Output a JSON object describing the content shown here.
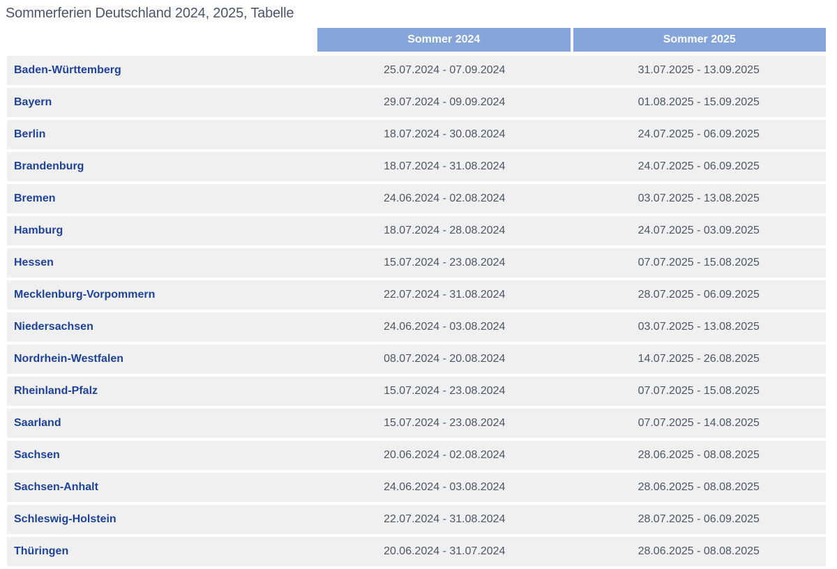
{
  "page": {
    "title": "Sommerferien Deutschland 2024, 2025, Tabelle"
  },
  "table": {
    "columns": [
      "Sommer 2024",
      "Sommer 2025"
    ],
    "rows": [
      {
        "state": "Baden-Württemberg",
        "sommer_2024": "25.07.2024 - 07.09.2024",
        "sommer_2025": "31.07.2025 - 13.09.2025"
      },
      {
        "state": "Bayern",
        "sommer_2024": "29.07.2024 - 09.09.2024",
        "sommer_2025": "01.08.2025 - 15.09.2025"
      },
      {
        "state": "Berlin",
        "sommer_2024": "18.07.2024 - 30.08.2024",
        "sommer_2025": "24.07.2025 - 06.09.2025"
      },
      {
        "state": "Brandenburg",
        "sommer_2024": "18.07.2024 - 31.08.2024",
        "sommer_2025": "24.07.2025 - 06.09.2025"
      },
      {
        "state": "Bremen",
        "sommer_2024": "24.06.2024 - 02.08.2024",
        "sommer_2025": "03.07.2025 - 13.08.2025"
      },
      {
        "state": "Hamburg",
        "sommer_2024": "18.07.2024 - 28.08.2024",
        "sommer_2025": "24.07.2025 - 03.09.2025"
      },
      {
        "state": "Hessen",
        "sommer_2024": "15.07.2024 - 23.08.2024",
        "sommer_2025": "07.07.2025 - 15.08.2025"
      },
      {
        "state": "Mecklenburg-Vorpommern",
        "sommer_2024": "22.07.2024 - 31.08.2024",
        "sommer_2025": "28.07.2025 - 06.09.2025"
      },
      {
        "state": "Niedersachsen",
        "sommer_2024": "24.06.2024 - 03.08.2024",
        "sommer_2025": "03.07.2025 - 13.08.2025"
      },
      {
        "state": "Nordrhein-Westfalen",
        "sommer_2024": "08.07.2024 - 20.08.2024",
        "sommer_2025": "14.07.2025 - 26.08.2025"
      },
      {
        "state": "Rheinland-Pfalz",
        "sommer_2024": "15.07.2024 - 23.08.2024",
        "sommer_2025": "07.07.2025 - 15.08.2025"
      },
      {
        "state": "Saarland",
        "sommer_2024": "15.07.2024 - 23.08.2024",
        "sommer_2025": "07.07.2025 - 14.08.2025"
      },
      {
        "state": "Sachsen",
        "sommer_2024": "20.06.2024 - 02.08.2024",
        "sommer_2025": "28.06.2025 - 08.08.2025"
      },
      {
        "state": "Sachsen-Anhalt",
        "sommer_2024": "24.06.2024 - 03.08.2024",
        "sommer_2025": "28.06.2025 - 08.08.2025"
      },
      {
        "state": "Schleswig-Holstein",
        "sommer_2024": "22.07.2024 - 31.08.2024",
        "sommer_2025": "28.07.2025 - 06.09.2025"
      },
      {
        "state": "Thüringen",
        "sommer_2024": "20.06.2024 - 31.07.2024",
        "sommer_2025": "28.06.2025 - 08.08.2025"
      }
    ]
  },
  "colors": {
    "header_bg": "#84a4da",
    "header_text": "#ffffff",
    "row_bg": "#f0f0f0",
    "state_text": "#1e4399",
    "date_text": "#4c5767",
    "title_text": "#4a5568",
    "page_bg": "#ffffff"
  }
}
